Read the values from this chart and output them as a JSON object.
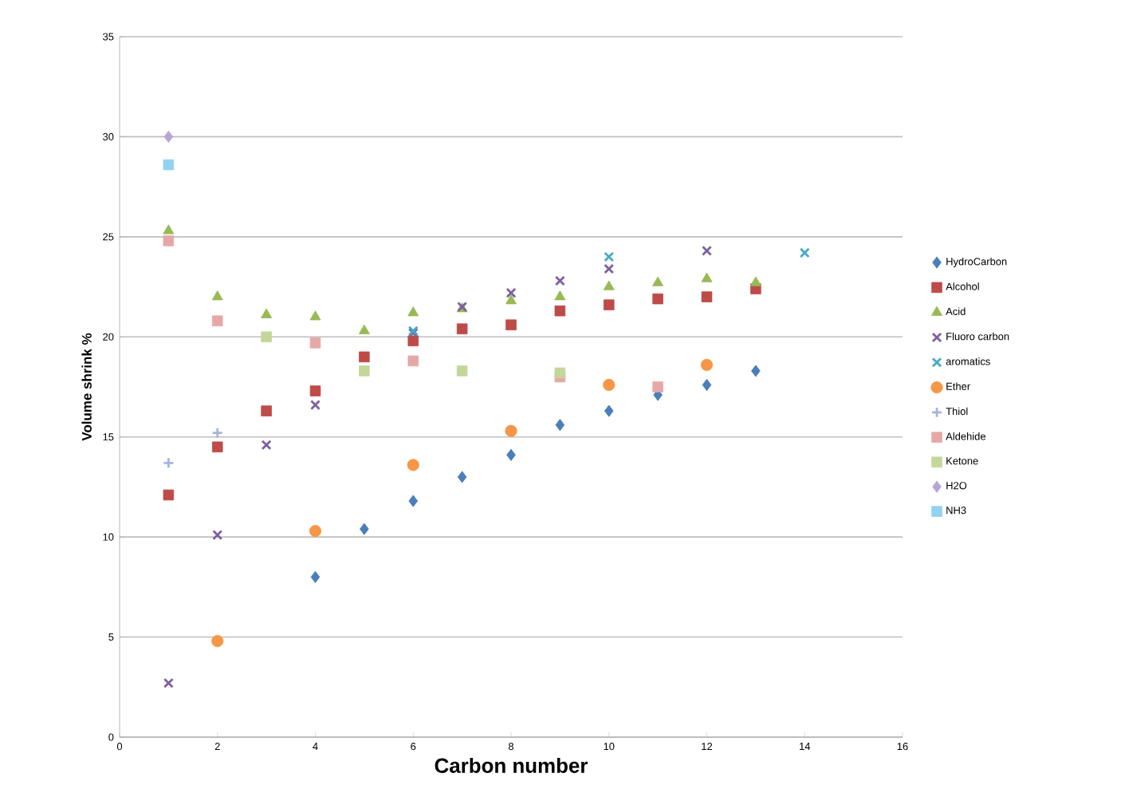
{
  "chart_data": {
    "type": "scatter",
    "xlabel": "Carbon number",
    "ylabel": "Volume shrink %",
    "xlim": [
      0,
      16
    ],
    "xticks": [
      0,
      2,
      4,
      6,
      8,
      10,
      12,
      14,
      16
    ],
    "ylim": [
      0,
      35
    ],
    "yticks": [
      0,
      5,
      10,
      15,
      20,
      25,
      30,
      35
    ],
    "grid": "y",
    "legend": "right",
    "series": [
      {
        "name": "HydroCarbon",
        "color": "#4a7ebb",
        "marker": "diamond",
        "x": [
          4,
          5,
          6,
          7,
          8,
          9,
          10,
          11,
          12,
          13
        ],
        "values": [
          8.0,
          10.4,
          11.8,
          13.0,
          14.1,
          15.6,
          16.3,
          17.1,
          17.6,
          18.3
        ]
      },
      {
        "name": "Alcohol",
        "color": "#be4b48",
        "marker": "square",
        "x": [
          1,
          2,
          3,
          4,
          5,
          6,
          7,
          8,
          9,
          10,
          11,
          12,
          13
        ],
        "values": [
          12.1,
          14.5,
          16.3,
          17.3,
          19.0,
          19.8,
          20.4,
          20.6,
          21.3,
          21.6,
          21.9,
          22.0,
          22.4
        ]
      },
      {
        "name": "Acid",
        "color": "#98b954",
        "marker": "triangle",
        "x": [
          1,
          2,
          3,
          4,
          5,
          6,
          7,
          8,
          9,
          10,
          11,
          12,
          13
        ],
        "values": [
          25.3,
          22.0,
          21.1,
          21.0,
          20.3,
          21.2,
          21.4,
          21.8,
          22.0,
          22.5,
          22.7,
          22.9,
          22.7
        ]
      },
      {
        "name": "Fluoro carbon",
        "color": "#7d60a0",
        "marker": "cross",
        "x": [
          1,
          2,
          3,
          4,
          6,
          7,
          8,
          9,
          10,
          12
        ],
        "values": [
          2.7,
          10.1,
          14.6,
          16.6,
          20.2,
          21.5,
          22.2,
          22.8,
          23.4,
          24.3
        ]
      },
      {
        "name": "aromatics",
        "color": "#46aac5",
        "marker": "cross",
        "x": [
          6,
          10,
          14
        ],
        "values": [
          20.3,
          24.0,
          24.2
        ]
      },
      {
        "name": "Ether",
        "color": "#f79646",
        "marker": "circle",
        "x": [
          2,
          4,
          6,
          8,
          10,
          12
        ],
        "values": [
          4.8,
          10.3,
          13.6,
          15.3,
          17.6,
          18.6
        ]
      },
      {
        "name": "Thiol",
        "color": "#a5b4d9",
        "marker": "plus",
        "x": [
          1,
          2
        ],
        "values": [
          13.7,
          15.2
        ]
      },
      {
        "name": "Aldehide",
        "color": "#e6a8a7",
        "marker": "square",
        "x": [
          1,
          2,
          4,
          6,
          9,
          11
        ],
        "values": [
          24.8,
          20.8,
          19.7,
          18.8,
          18.0,
          17.5
        ]
      },
      {
        "name": "Ketone",
        "color": "#c4d79b",
        "marker": "square",
        "x": [
          3,
          5,
          7,
          9
        ],
        "values": [
          20.0,
          18.3,
          18.3,
          18.2
        ]
      },
      {
        "name": "H2O",
        "color": "#b7a6d4",
        "marker": "diamond",
        "x": [
          1
        ],
        "values": [
          30.0
        ]
      },
      {
        "name": "NH3",
        "color": "#92d3ef",
        "marker": "square",
        "x": [
          1
        ],
        "values": [
          28.6
        ]
      }
    ]
  }
}
